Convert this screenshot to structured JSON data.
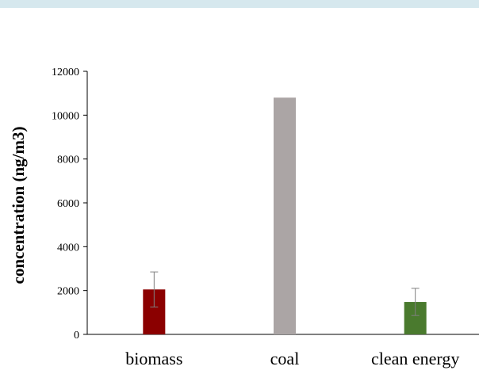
{
  "chart_data": {
    "type": "bar",
    "title": "",
    "xlabel": "",
    "ylabel": "concentration (ng/m3)",
    "ylim": [
      0,
      12000
    ],
    "yticks": [
      0,
      2000,
      4000,
      6000,
      8000,
      10000,
      12000
    ],
    "ytick_labels": [
      "0",
      "2000",
      "4000",
      "6000",
      "8000",
      "10000",
      "12000"
    ],
    "categories": [
      "biomass",
      "coal",
      "clean energy"
    ],
    "values": [
      2050,
      10800,
      1480
    ],
    "error": [
      800,
      0,
      620
    ],
    "colors": [
      "#8b0000",
      "#aba5a5",
      "#4a7a2e"
    ],
    "grid": false,
    "legend": "none"
  },
  "colors": {
    "header_band": "#d6e8ee",
    "axis": "#000000",
    "error_bar": "#7f7f7f"
  }
}
